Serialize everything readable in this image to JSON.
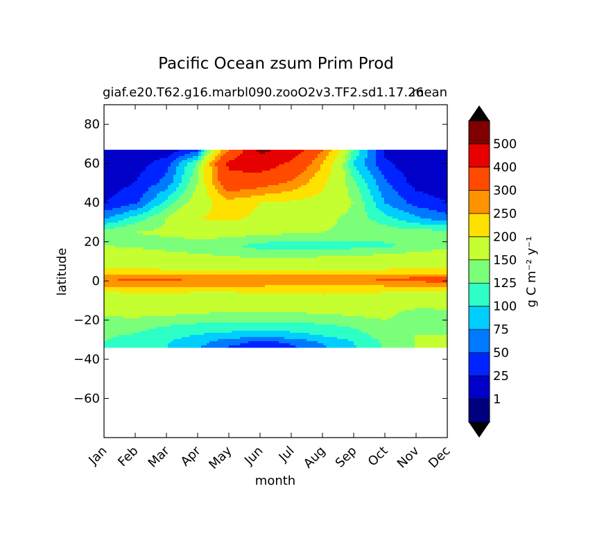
{
  "chart_data": {
    "type": "heatmap",
    "title": "Pacific Ocean zsum Prim Prod",
    "subtitle_left": "giaf.e20.T62.g16.marbl090.zooO2v3.TF2.sd1.17.26",
    "subtitle_right": "mean",
    "xlabel": "month",
    "ylabel": "latitude",
    "x_ticks": [
      "Jan",
      "Feb",
      "Mar",
      "Apr",
      "May",
      "Jun",
      "Jul",
      "Aug",
      "Sep",
      "Oct",
      "Nov",
      "Dec"
    ],
    "y_ticks": [
      80,
      60,
      40,
      20,
      0,
      -20,
      -40,
      -60
    ],
    "xlim": [
      1,
      12
    ],
    "ylim": [
      -80,
      90
    ],
    "data_lat_range": [
      -34,
      67
    ],
    "colorbar": {
      "label": "g C m⁻² y⁻¹",
      "levels": [
        0,
        1,
        25,
        50,
        75,
        100,
        125,
        150,
        200,
        250,
        300,
        400,
        500,
        600
      ],
      "tick_labels": [
        "1",
        "25",
        "50",
        "75",
        "100",
        "125",
        "150",
        "200",
        "250",
        "300",
        "400",
        "500"
      ],
      "colors": [
        "#00007f",
        "#0000c8",
        "#0024ff",
        "#0078ff",
        "#00ceff",
        "#2dffc6",
        "#7bff7b",
        "#c5ff31",
        "#ffe100",
        "#ff9400",
        "#ff4a00",
        "#e60000",
        "#7f0000"
      ],
      "extend_under_color": "#000000",
      "extend_over_color": "#000000"
    },
    "field_rows": [
      {
        "lat": 67,
        "values": [
          1,
          1,
          5,
          40,
          300,
          520,
          480,
          300,
          120,
          20,
          2,
          1
        ]
      },
      {
        "lat": 60,
        "values": [
          5,
          12,
          40,
          130,
          420,
          460,
          380,
          250,
          100,
          30,
          6,
          3
        ]
      },
      {
        "lat": 50,
        "values": [
          12,
          25,
          60,
          150,
          360,
          330,
          290,
          210,
          130,
          55,
          15,
          10
        ]
      },
      {
        "lat": 40,
        "values": [
          25,
          45,
          110,
          170,
          230,
          200,
          190,
          180,
          150,
          75,
          40,
          25
        ]
      },
      {
        "lat": 32,
        "values": [
          70,
          110,
          150,
          200,
          210,
          190,
          170,
          160,
          140,
          110,
          80,
          60
        ]
      },
      {
        "lat": 25,
        "values": [
          140,
          150,
          155,
          165,
          165,
          160,
          155,
          150,
          145,
          140,
          135,
          135
        ]
      },
      {
        "lat": 18,
        "values": [
          150,
          145,
          140,
          135,
          130,
          115,
          110,
          115,
          115,
          120,
          130,
          140
        ]
      },
      {
        "lat": 10,
        "values": [
          185,
          180,
          170,
          165,
          160,
          160,
          160,
          165,
          170,
          175,
          180,
          185
        ]
      },
      {
        "lat": 5,
        "values": [
          205,
          210,
          205,
          205,
          205,
          205,
          205,
          205,
          205,
          205,
          210,
          210
        ]
      },
      {
        "lat": 1,
        "values": [
          300,
          310,
          310,
          300,
          300,
          300,
          300,
          300,
          300,
          310,
          320,
          340
        ]
      },
      {
        "lat": -2,
        "values": [
          270,
          280,
          270,
          260,
          260,
          260,
          250,
          250,
          250,
          260,
          270,
          280
        ]
      },
      {
        "lat": -6,
        "values": [
          190,
          200,
          200,
          195,
          195,
          200,
          200,
          205,
          205,
          195,
          190,
          185
        ]
      },
      {
        "lat": -12,
        "values": [
          160,
          162,
          165,
          168,
          170,
          172,
          172,
          170,
          165,
          160,
          158,
          157
        ]
      },
      {
        "lat": -18,
        "values": [
          150,
          152,
          150,
          145,
          140,
          140,
          140,
          145,
          150,
          155,
          135,
          140
        ]
      },
      {
        "lat": -24,
        "values": [
          140,
          135,
          120,
          112,
          110,
          108,
          110,
          115,
          125,
          140,
          145,
          145
        ]
      },
      {
        "lat": -28,
        "values": [
          130,
          120,
          108,
          98,
          90,
          85,
          90,
          100,
          115,
          135,
          150,
          150
        ]
      },
      {
        "lat": -31,
        "values": [
          125,
          112,
          102,
          85,
          60,
          45,
          55,
          80,
          100,
          130,
          150,
          155
        ]
      },
      {
        "lat": -34,
        "values": [
          120,
          110,
          100,
          78,
          48,
          40,
          45,
          70,
          98,
          128,
          152,
          155
        ]
      }
    ]
  }
}
